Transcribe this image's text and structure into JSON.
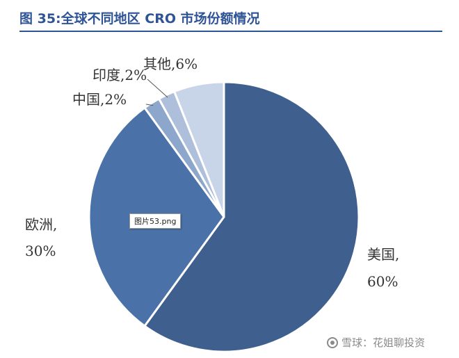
{
  "figure": {
    "title": "图 35:全球不同地区 CRO 市场份额情况"
  },
  "chart_data": {
    "type": "pie",
    "title": "图 35:全球不同地区 CRO 市场份额情况",
    "slices": [
      {
        "name": "美国",
        "value": 60,
        "label_line1": "美国,",
        "label_line2": "60%",
        "color": "#3f5f8e"
      },
      {
        "name": "欧洲",
        "value": 30,
        "label_line1": "欧洲,",
        "label_line2": "30%",
        "color": "#4a72a8"
      },
      {
        "name": "中国",
        "value": 2,
        "label": "中国,2%",
        "color": "#8da6cb"
      },
      {
        "name": "印度",
        "value": 2,
        "label": "印度,2%",
        "color": "#aebfdb"
      },
      {
        "name": "其他",
        "value": 6,
        "label": "其他,6%",
        "color": "#c8d4e8"
      }
    ]
  },
  "overlay": {
    "image_tag": "图片53.png"
  },
  "watermark": {
    "text": "雪球：花姐聊投资",
    "icon": "snowball-icon"
  }
}
